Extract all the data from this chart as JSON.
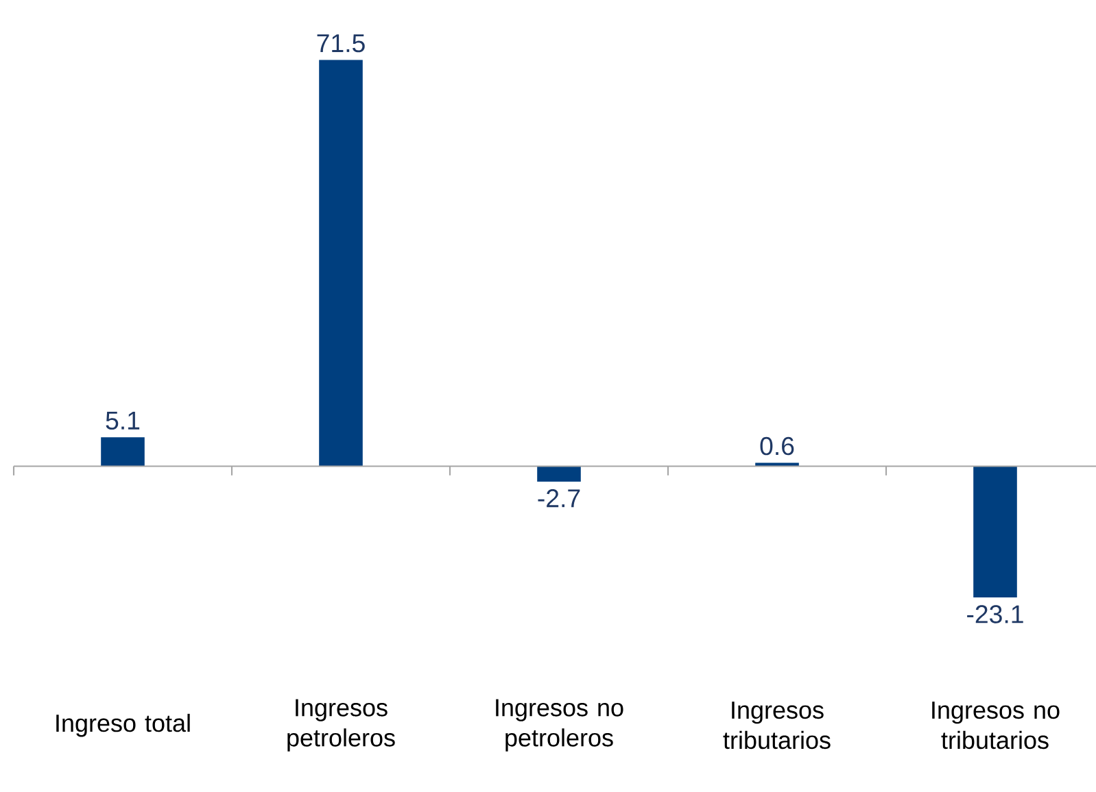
{
  "chart_data": {
    "type": "bar",
    "categories": [
      "Ingreso total",
      "Ingresos petroleros",
      "Ingresos no petroleros",
      "Ingresos tributarios",
      "Ingresos no tributarios"
    ],
    "values": [
      5.1,
      71.5,
      -2.7,
      0.6,
      -23.1
    ],
    "color": "#003f7f",
    "data_labels": true
  }
}
